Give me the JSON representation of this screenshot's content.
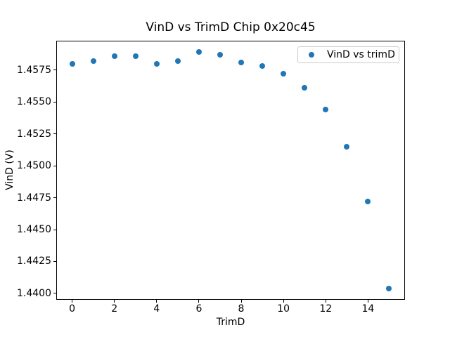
{
  "chart_data": {
    "type": "scatter",
    "title": "VinD vs TrimD Chip 0x20c45",
    "xlabel": "TrimD",
    "ylabel": "VinD (V)",
    "legend": {
      "label": "VinD vs trimD",
      "position": "upper right"
    },
    "marker_color": "#1f77b4",
    "x": [
      0,
      1,
      2,
      3,
      4,
      5,
      6,
      7,
      8,
      9,
      10,
      11,
      12,
      13,
      14,
      15
    ],
    "y": [
      1.458,
      1.4582,
      1.4586,
      1.4586,
      1.458,
      1.4582,
      1.4589,
      1.4587,
      1.4581,
      1.4578,
      1.4572,
      1.4561,
      1.4544,
      1.4515,
      1.4472,
      1.4404
    ],
    "xlim": [
      -0.75,
      15.75
    ],
    "ylim": [
      1.4395,
      1.4598
    ],
    "xticks": [
      0,
      2,
      4,
      6,
      8,
      10,
      12,
      14
    ],
    "xtick_labels": [
      "0",
      "2",
      "4",
      "6",
      "8",
      "10",
      "12",
      "14"
    ],
    "yticks": [
      1.44,
      1.4425,
      1.445,
      1.4475,
      1.45,
      1.4525,
      1.455,
      1.4575
    ],
    "ytick_labels": [
      "1.4400",
      "1.4425",
      "1.4450",
      "1.4475",
      "1.4500",
      "1.4525",
      "1.4550",
      "1.4575"
    ],
    "grid": false
  }
}
